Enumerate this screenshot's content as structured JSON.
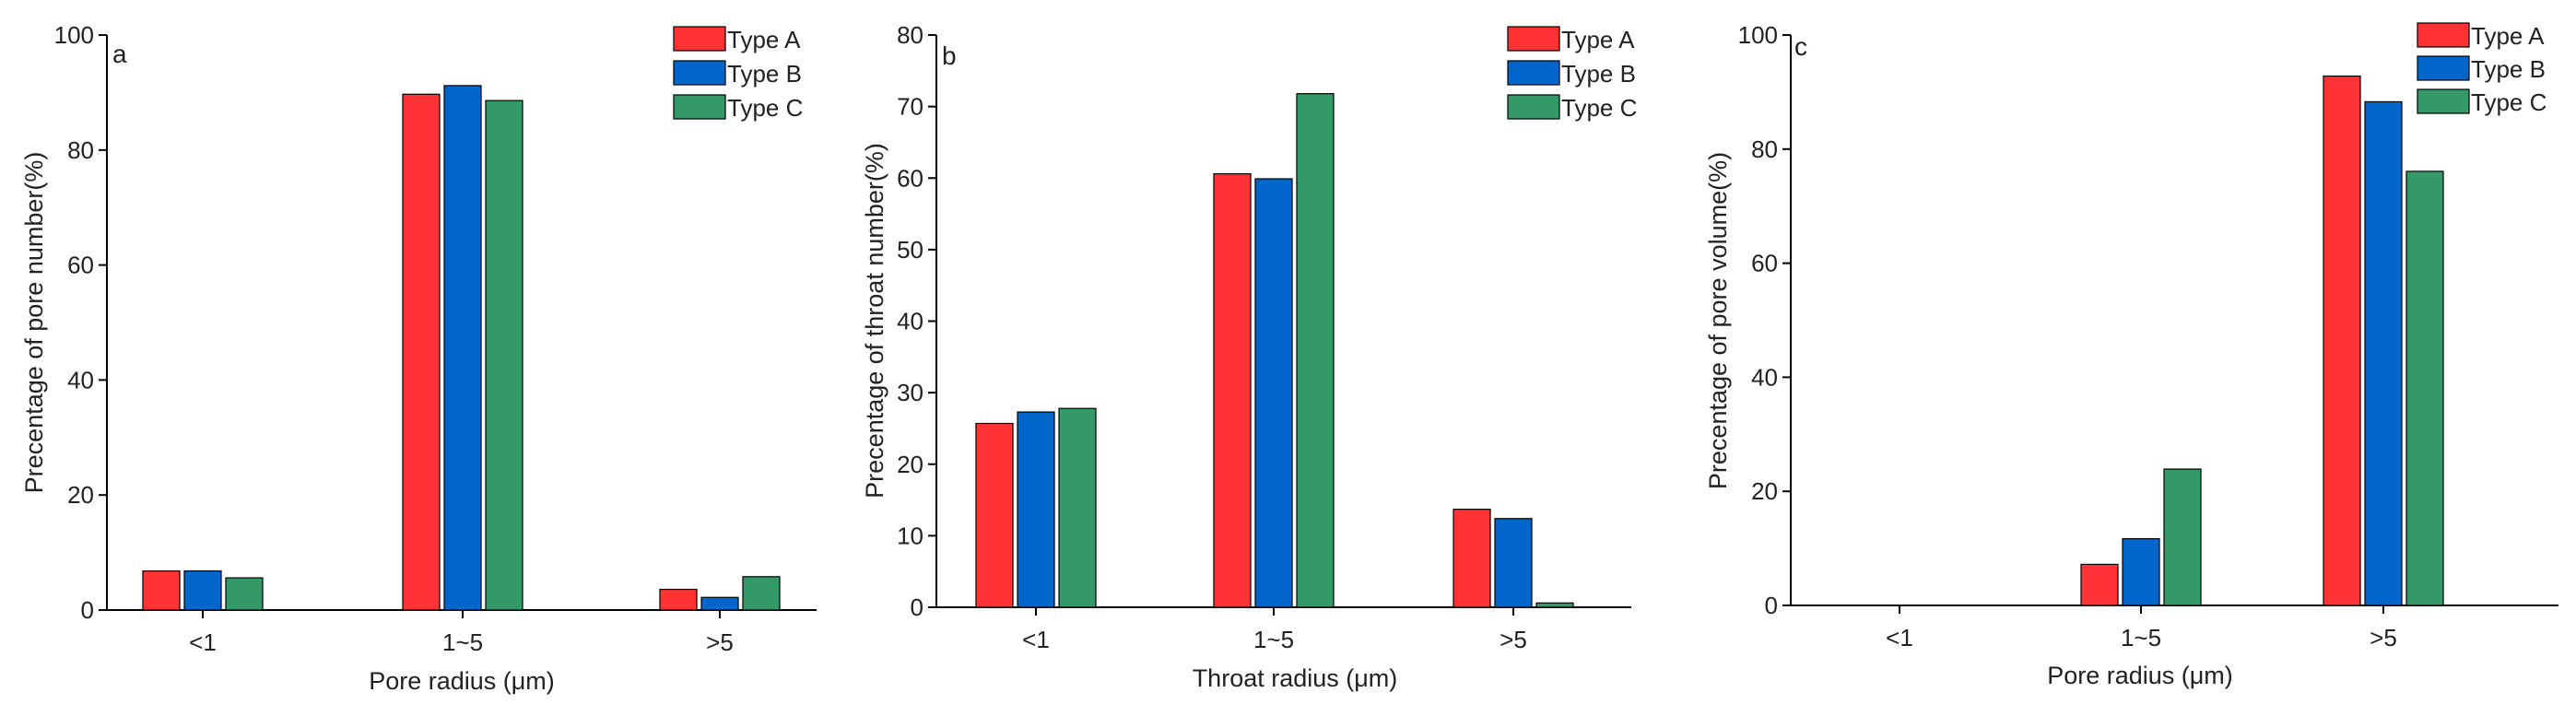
{
  "colors": {
    "type_a": "#ff3333",
    "type_b": "#0066cc",
    "type_c": "#339966",
    "axis": "#000000",
    "text": "#222222"
  },
  "chart_data": [
    {
      "type": "bar",
      "panel_label": "a",
      "title": "",
      "xlabel": "Pore radius (μm)",
      "ylabel": "Precentage of pore number(%)",
      "categories": [
        "<1",
        "1~5",
        ">5"
      ],
      "series": [
        {
          "name": "Type A",
          "values": [
            6.8,
            89.7,
            3.6
          ]
        },
        {
          "name": "Type B",
          "values": [
            6.8,
            91.2,
            2.2
          ]
        },
        {
          "name": "Type C",
          "values": [
            5.6,
            88.6,
            5.8
          ]
        }
      ],
      "ylim": [
        0,
        100
      ],
      "yticks": [
        "0",
        "20",
        "40",
        "60",
        "80",
        "100"
      ],
      "legend_position": "top-right"
    },
    {
      "type": "bar",
      "panel_label": "b",
      "title": "",
      "xlabel": "Throat radius (μm)",
      "ylabel": "Precentage of throat number(%)",
      "categories": [
        "<1",
        "1~5",
        ">5"
      ],
      "series": [
        {
          "name": "Type A",
          "values": [
            25.7,
            60.6,
            13.7
          ]
        },
        {
          "name": "Type B",
          "values": [
            27.3,
            59.9,
            12.4
          ]
        },
        {
          "name": "Type C",
          "values": [
            27.8,
            71.8,
            0.6
          ]
        }
      ],
      "ylim": [
        0,
        80
      ],
      "yticks": [
        "0",
        "10",
        "20",
        "30",
        "40",
        "50",
        "60",
        "70",
        "80"
      ],
      "legend_position": "top-right"
    },
    {
      "type": "bar",
      "panel_label": "c",
      "title": "",
      "xlabel": "Pore radius (μm)",
      "ylabel": "Precentage of pore volume(%)",
      "categories": [
        "<1",
        "1~5",
        ">5"
      ],
      "series": [
        {
          "name": "Type A",
          "values": [
            0,
            7.2,
            92.8
          ]
        },
        {
          "name": "Type B",
          "values": [
            0,
            11.7,
            88.3
          ]
        },
        {
          "name": "Type C",
          "values": [
            0,
            23.9,
            76.1
          ]
        }
      ],
      "ylim": [
        0,
        100
      ],
      "yticks": [
        "0",
        "20",
        "40",
        "60",
        "80",
        "100"
      ],
      "legend_position": "top-right"
    }
  ]
}
